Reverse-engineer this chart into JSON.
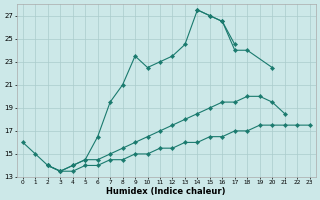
{
  "xlabel": "Humidex (Indice chaleur)",
  "bg_color": "#cce8e8",
  "grid_color": "#aacccc",
  "line_color": "#1a7a6e",
  "xlim": [
    -0.5,
    23.5
  ],
  "ylim": [
    13,
    28
  ],
  "yticks": [
    13,
    15,
    17,
    19,
    21,
    23,
    25,
    27
  ],
  "curve1_x": [
    0,
    1,
    2,
    3,
    4,
    5,
    6,
    7,
    8,
    9,
    10,
    11,
    12,
    13,
    14,
    15,
    16,
    17
  ],
  "curve1_y": [
    16,
    15,
    14,
    13.5,
    14,
    14.5,
    16.5,
    19.5,
    21,
    23.5,
    22.5,
    23,
    23.5,
    24.5,
    27.5,
    27,
    26.5,
    24.5
  ],
  "curve2_x": [
    14,
    15,
    16,
    17,
    18,
    20
  ],
  "curve2_y": [
    27.5,
    27,
    26.5,
    24.0,
    24.0,
    22.5
  ],
  "curve3_x": [
    2,
    3,
    4,
    5,
    6,
    7,
    8,
    9,
    10,
    11,
    12,
    13,
    14,
    15,
    16,
    17,
    18,
    19,
    20,
    21
  ],
  "curve3_y": [
    14,
    13.5,
    14,
    14.5,
    14.5,
    15,
    15.5,
    16,
    16.5,
    17,
    17.5,
    18,
    18.5,
    19,
    19.5,
    19.5,
    20,
    20.0,
    19.5,
    18.5
  ],
  "curve4_x": [
    2,
    3,
    4,
    5,
    6,
    7,
    8,
    9,
    10,
    11,
    12,
    13,
    14,
    15,
    16,
    17,
    18,
    19,
    20,
    21,
    22,
    23
  ],
  "curve4_y": [
    14,
    13.5,
    13.5,
    14,
    14,
    14.5,
    14.5,
    15,
    15,
    15.5,
    15.5,
    16,
    16,
    16.5,
    16.5,
    17,
    17,
    17.5,
    17.5,
    17.5,
    17.5,
    17.5
  ]
}
